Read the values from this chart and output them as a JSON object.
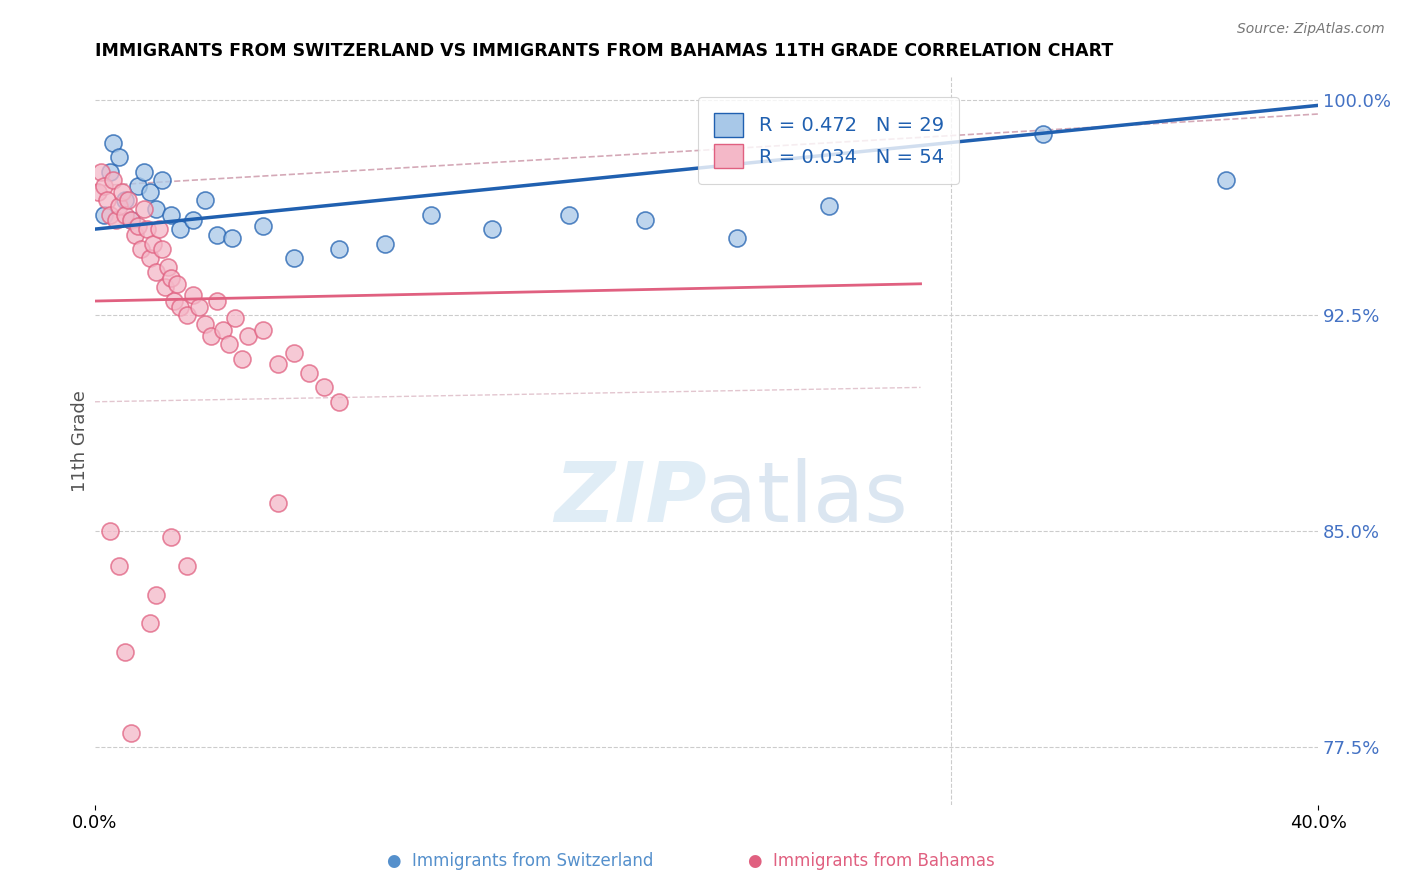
{
  "title": "IMMIGRANTS FROM SWITZERLAND VS IMMIGRANTS FROM BAHAMAS 11TH GRADE CORRELATION CHART",
  "source": "Source: ZipAtlas.com",
  "ylabel_label": "11th Grade",
  "legend_label1": "Immigrants from Switzerland",
  "legend_label2": "Immigrants from Bahamas",
  "r1": 0.472,
  "n1": 29,
  "r2": 0.034,
  "n2": 54,
  "color_blue": "#a8c8e8",
  "color_pink": "#f4b8c8",
  "color_blue_line": "#2060b0",
  "color_pink_line": "#e06080",
  "color_dashed": "#d0a0b0",
  "xmin": 0.0,
  "xmax": 0.4,
  "ymin": 0.755,
  "ymax": 1.008,
  "blue_scatter_x": [
    0.003,
    0.005,
    0.006,
    0.008,
    0.01,
    0.012,
    0.014,
    0.016,
    0.018,
    0.02,
    0.022,
    0.025,
    0.028,
    0.032,
    0.036,
    0.04,
    0.045,
    0.055,
    0.065,
    0.08,
    0.095,
    0.11,
    0.13,
    0.155,
    0.18,
    0.21,
    0.24,
    0.31,
    0.37
  ],
  "blue_scatter_y": [
    0.96,
    0.975,
    0.985,
    0.98,
    0.965,
    0.958,
    0.97,
    0.975,
    0.968,
    0.962,
    0.972,
    0.96,
    0.955,
    0.958,
    0.965,
    0.953,
    0.952,
    0.956,
    0.945,
    0.948,
    0.95,
    0.96,
    0.955,
    0.96,
    0.958,
    0.952,
    0.963,
    0.988,
    0.972
  ],
  "pink_scatter_x": [
    0.001,
    0.002,
    0.003,
    0.004,
    0.005,
    0.006,
    0.007,
    0.008,
    0.009,
    0.01,
    0.011,
    0.012,
    0.013,
    0.014,
    0.015,
    0.016,
    0.017,
    0.018,
    0.019,
    0.02,
    0.021,
    0.022,
    0.023,
    0.024,
    0.025,
    0.026,
    0.027,
    0.028,
    0.03,
    0.032,
    0.034,
    0.036,
    0.038,
    0.04,
    0.042,
    0.044,
    0.046,
    0.048,
    0.05,
    0.055,
    0.06,
    0.065,
    0.07,
    0.075,
    0.08,
    0.025,
    0.03,
    0.02,
    0.018,
    0.01,
    0.008,
    0.005,
    0.012,
    0.06
  ],
  "pink_scatter_y": [
    0.968,
    0.975,
    0.97,
    0.965,
    0.96,
    0.972,
    0.958,
    0.963,
    0.968,
    0.96,
    0.965,
    0.958,
    0.953,
    0.956,
    0.948,
    0.962,
    0.955,
    0.945,
    0.95,
    0.94,
    0.955,
    0.948,
    0.935,
    0.942,
    0.938,
    0.93,
    0.936,
    0.928,
    0.925,
    0.932,
    0.928,
    0.922,
    0.918,
    0.93,
    0.92,
    0.915,
    0.924,
    0.91,
    0.918,
    0.92,
    0.908,
    0.912,
    0.905,
    0.9,
    0.895,
    0.848,
    0.838,
    0.828,
    0.818,
    0.808,
    0.838,
    0.85,
    0.78,
    0.86
  ]
}
